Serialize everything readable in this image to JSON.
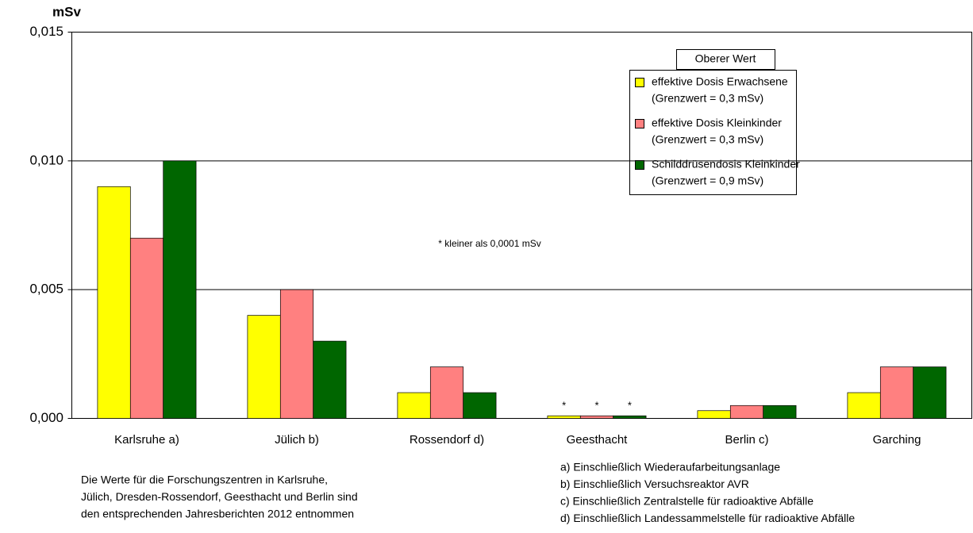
{
  "chart_data": {
    "type": "bar",
    "y_label": "mSv",
    "categories": [
      "Karlsruhe  a)",
      "Jülich b)",
      "Rossendorf d)",
      "Geesthacht",
      "Berlin c)",
      "Garching"
    ],
    "series": [
      {
        "name": "effektive Dosis Erwachsene",
        "note": "(Grenzwert = 0,3 mSv)",
        "color": "#ffff00",
        "values": [
          0.009,
          0.004,
          0.001,
          0.0001,
          0.0003,
          0.001
        ]
      },
      {
        "name": "effektive Dosis Kleinkinder",
        "note": "(Grenzwert = 0,3 mSv)",
        "color": "#ff8080",
        "values": [
          0.007,
          0.005,
          0.002,
          0.0001,
          0.0005,
          0.002
        ]
      },
      {
        "name": "Schilddrüsendosis Kleinkinder",
        "note": "(Grenzwert = 0,9 mSv)",
        "color": "#006600",
        "values": [
          0.01,
          0.003,
          0.001,
          0.0001,
          0.0005,
          0.002
        ]
      }
    ],
    "star_category": 3,
    "star_label": "*",
    "legend_title": "Oberer Wert",
    "annotation": "* kleiner als 0,0001 mSv",
    "ylim": [
      0,
      0.015
    ],
    "yticks": [
      {
        "value": 0,
        "label": "0,000"
      },
      {
        "value": 0.005,
        "label": "0,005"
      },
      {
        "value": 0.01,
        "label": "0,010"
      },
      {
        "value": 0.015,
        "label": "0,015"
      }
    ],
    "grid": true,
    "footnotes_left": [
      "Die Werte für die Forschungszentren in Karlsruhe,",
      "Jülich, Dresden-Rossendorf, Geesthacht und Berlin sind",
      "den entsprechenden Jahresberichten 2012 entnommen"
    ],
    "footnotes_right": [
      "a) Einschließlich Wiederaufarbeitungsanlage",
      "b) Einschließlich Versuchsreaktor AVR",
      "c) Einschließlich Zentralstelle für radioaktive Abfälle",
      "d) Einschließlich Landessammelstelle für radioaktive Abfälle"
    ]
  }
}
